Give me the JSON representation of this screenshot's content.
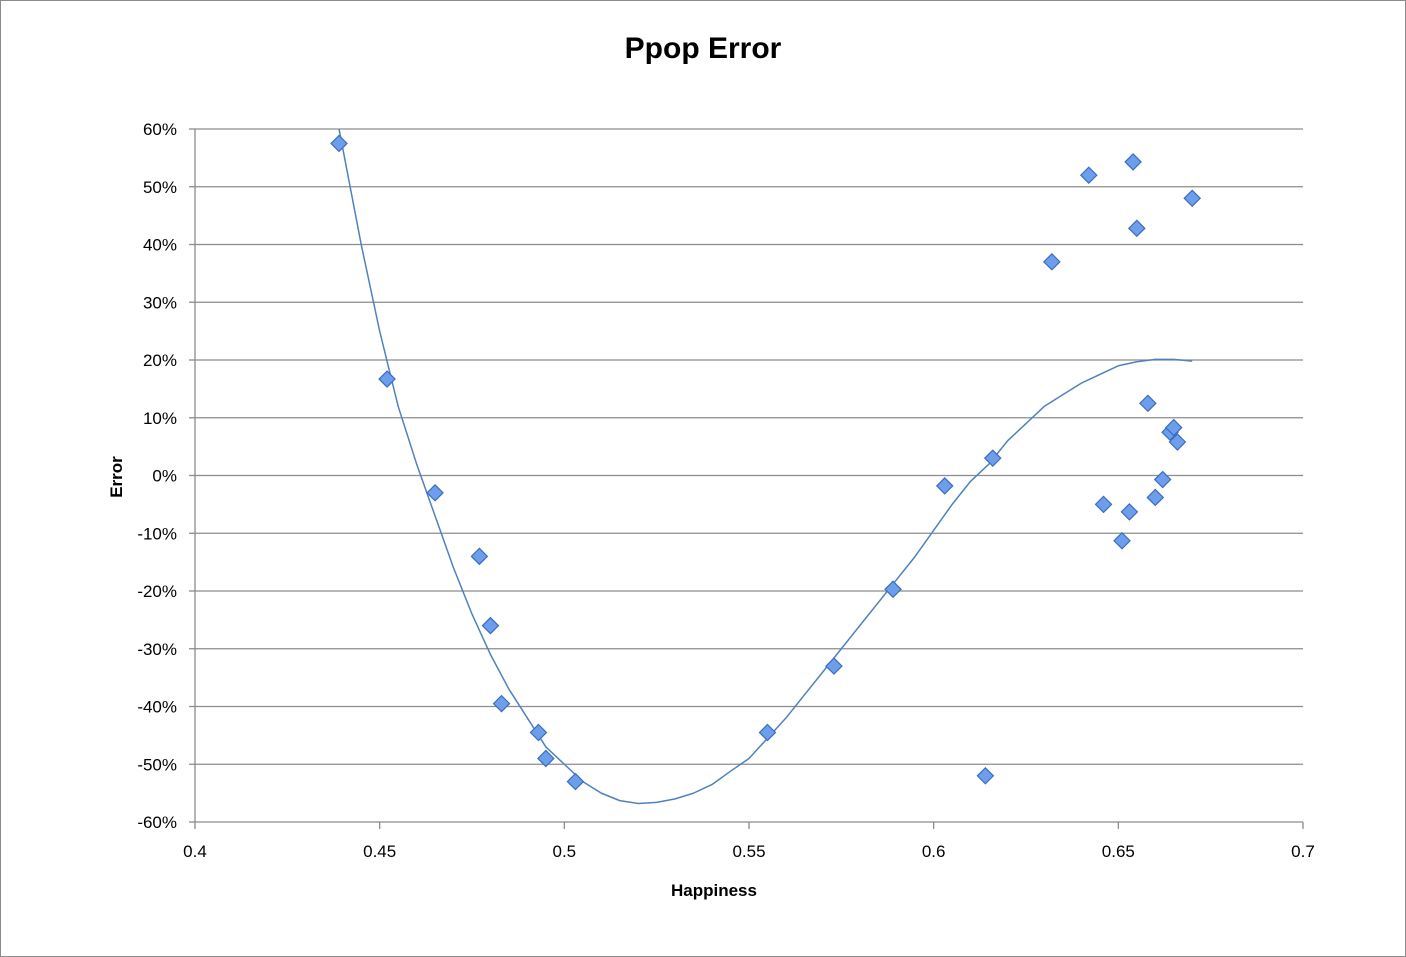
{
  "chart_data": {
    "type": "scatter",
    "title": "Ppop Error",
    "xlabel": "Happiness",
    "ylabel": "Error",
    "xlim": [
      0.4,
      0.7
    ],
    "ylim": [
      -0.6,
      0.6
    ],
    "x_ticks": [
      0.4,
      0.45,
      0.5,
      0.55,
      0.6,
      0.65,
      0.7
    ],
    "x_tick_labels": [
      "0.4",
      "0.45",
      "0.5",
      "0.55",
      "0.6",
      "0.65",
      "0.7"
    ],
    "y_ticks": [
      0.6,
      0.5,
      0.4,
      0.3,
      0.2,
      0.1,
      0.0,
      -0.1,
      -0.2,
      -0.3,
      -0.4,
      -0.5,
      -0.6
    ],
    "y_tick_labels": [
      "60%",
      "50%",
      "40%",
      "30%",
      "20%",
      "10%",
      "0%",
      "-10%",
      "-20%",
      "-30%",
      "-40%",
      "-50%",
      "-60%"
    ],
    "grid": "horizontal",
    "legend": "none",
    "marker": "diamond",
    "marker_color": "#6d9eeb",
    "marker_edge_color": "#3c6cbf",
    "trendline_color": "#4f81bd",
    "points": [
      {
        "x": 0.439,
        "y": 0.575
      },
      {
        "x": 0.452,
        "y": 0.167
      },
      {
        "x": 0.465,
        "y": -0.03
      },
      {
        "x": 0.477,
        "y": -0.14
      },
      {
        "x": 0.48,
        "y": -0.26
      },
      {
        "x": 0.483,
        "y": -0.395
      },
      {
        "x": 0.493,
        "y": -0.445
      },
      {
        "x": 0.495,
        "y": -0.49
      },
      {
        "x": 0.503,
        "y": -0.53
      },
      {
        "x": 0.555,
        "y": -0.445
      },
      {
        "x": 0.573,
        "y": -0.33
      },
      {
        "x": 0.589,
        "y": -0.197
      },
      {
        "x": 0.603,
        "y": -0.018
      },
      {
        "x": 0.614,
        "y": -0.52
      },
      {
        "x": 0.616,
        "y": 0.03
      },
      {
        "x": 0.632,
        "y": 0.37
      },
      {
        "x": 0.642,
        "y": 0.52
      },
      {
        "x": 0.646,
        "y": -0.05
      },
      {
        "x": 0.651,
        "y": -0.113
      },
      {
        "x": 0.653,
        "y": -0.063
      },
      {
        "x": 0.654,
        "y": 0.543
      },
      {
        "x": 0.655,
        "y": 0.428
      },
      {
        "x": 0.658,
        "y": 0.125
      },
      {
        "x": 0.66,
        "y": -0.038
      },
      {
        "x": 0.662,
        "y": -0.007
      },
      {
        "x": 0.664,
        "y": 0.075
      },
      {
        "x": 0.665,
        "y": 0.083
      },
      {
        "x": 0.666,
        "y": 0.058
      },
      {
        "x": 0.67,
        "y": 0.48
      }
    ],
    "trendline": {
      "type": "polynomial",
      "points": [
        {
          "x": 0.439,
          "y": 0.6
        },
        {
          "x": 0.445,
          "y": 0.4
        },
        {
          "x": 0.45,
          "y": 0.25
        },
        {
          "x": 0.455,
          "y": 0.12
        },
        {
          "x": 0.46,
          "y": 0.02
        },
        {
          "x": 0.465,
          "y": -0.07
        },
        {
          "x": 0.47,
          "y": -0.16
        },
        {
          "x": 0.475,
          "y": -0.24
        },
        {
          "x": 0.48,
          "y": -0.31
        },
        {
          "x": 0.485,
          "y": -0.37
        },
        {
          "x": 0.49,
          "y": -0.42
        },
        {
          "x": 0.495,
          "y": -0.47
        },
        {
          "x": 0.5,
          "y": -0.5
        },
        {
          "x": 0.505,
          "y": -0.53
        },
        {
          "x": 0.51,
          "y": -0.55
        },
        {
          "x": 0.515,
          "y": -0.563
        },
        {
          "x": 0.52,
          "y": -0.568
        },
        {
          "x": 0.525,
          "y": -0.566
        },
        {
          "x": 0.53,
          "y": -0.56
        },
        {
          "x": 0.535,
          "y": -0.55
        },
        {
          "x": 0.54,
          "y": -0.535
        },
        {
          "x": 0.545,
          "y": -0.512
        },
        {
          "x": 0.55,
          "y": -0.49
        },
        {
          "x": 0.555,
          "y": -0.455
        },
        {
          "x": 0.56,
          "y": -0.42
        },
        {
          "x": 0.565,
          "y": -0.38
        },
        {
          "x": 0.57,
          "y": -0.34
        },
        {
          "x": 0.575,
          "y": -0.3
        },
        {
          "x": 0.58,
          "y": -0.26
        },
        {
          "x": 0.585,
          "y": -0.22
        },
        {
          "x": 0.59,
          "y": -0.18
        },
        {
          "x": 0.595,
          "y": -0.14
        },
        {
          "x": 0.6,
          "y": -0.095
        },
        {
          "x": 0.605,
          "y": -0.05
        },
        {
          "x": 0.61,
          "y": -0.01
        },
        {
          "x": 0.615,
          "y": 0.02
        },
        {
          "x": 0.62,
          "y": 0.06
        },
        {
          "x": 0.625,
          "y": 0.09
        },
        {
          "x": 0.63,
          "y": 0.12
        },
        {
          "x": 0.635,
          "y": 0.14
        },
        {
          "x": 0.64,
          "y": 0.16
        },
        {
          "x": 0.645,
          "y": 0.175
        },
        {
          "x": 0.65,
          "y": 0.19
        },
        {
          "x": 0.655,
          "y": 0.197
        },
        {
          "x": 0.66,
          "y": 0.201
        },
        {
          "x": 0.665,
          "y": 0.201
        },
        {
          "x": 0.67,
          "y": 0.198
        }
      ]
    }
  }
}
